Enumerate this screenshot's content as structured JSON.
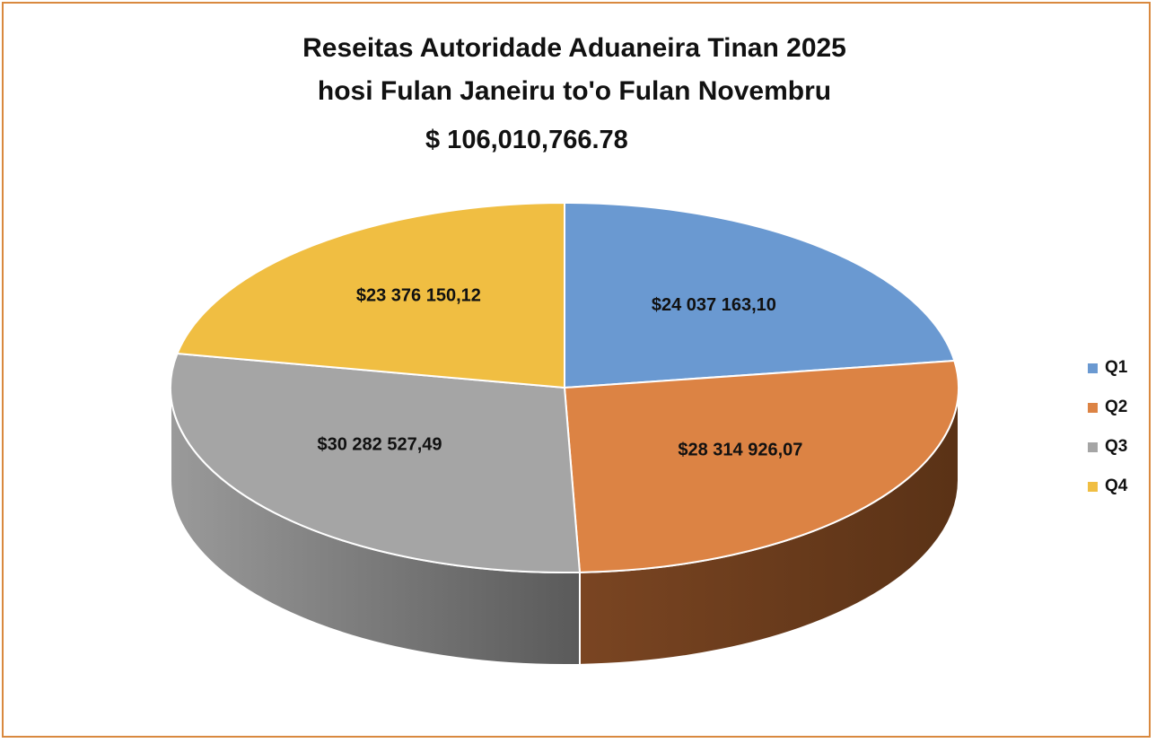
{
  "chart_data": {
    "type": "pie",
    "style": "3d",
    "title_line1": "Reseitas Autoridade Aduaneira Tinan 2025",
    "title_line2": "hosi Fulan Janeiru to'o Fulan Novembru",
    "total_label": "$ 106,010,766.78",
    "legend_position": "right",
    "slices": [
      {
        "name": "Q1",
        "value": 24037163.1,
        "label": "$24 037 163,10",
        "color": "#6a99d1"
      },
      {
        "name": "Q2",
        "value": 28314926.07,
        "label": "$28 314 926,07",
        "color": "#dc8344"
      },
      {
        "name": "Q3",
        "value": 30282527.49,
        "label": "$30 282 527,49",
        "color": "#a5a5a5"
      },
      {
        "name": "Q4",
        "value": 23376150.12,
        "label": "$23 376 150,12",
        "color": "#f0be42"
      }
    ]
  }
}
